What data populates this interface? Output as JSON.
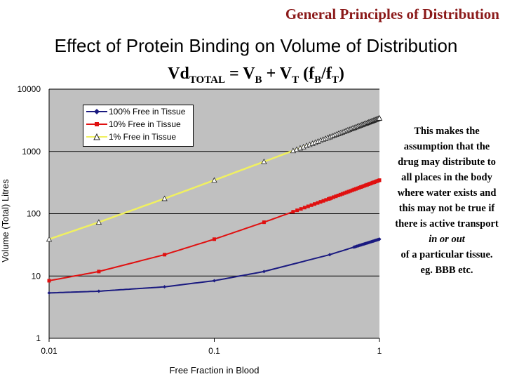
{
  "header": {
    "title": "General Principles of Distribution",
    "subtitle": "Effect of Protein Binding on Volume of Distribution",
    "equation": {
      "lhs": "Vd",
      "lhs_sub": "TOTAL",
      "eq": " = V",
      "b_sub": "B",
      "plus": " + V",
      "t_sub": "T",
      "open": " (f",
      "fb_sub": "B",
      "slash": "/f",
      "ft_sub": "T",
      "close": ")"
    }
  },
  "note": {
    "text_before": "This makes the assumption that the drug may distribute to all places in the body where water exists and this may not be true if there is active transport",
    "emphasis": "in or out",
    "text_after": "of a particular tissue.",
    "example": "eg. BBB etc."
  },
  "chart_data": {
    "type": "line",
    "xlabel": "Free Fraction in Blood",
    "ylabel": "Volume (Total) Litres",
    "x_scale": "log",
    "y_scale": "log",
    "xlim": [
      0.01,
      1
    ],
    "ylim": [
      1,
      10000
    ],
    "x_ticks": [
      "0.01",
      "0.1",
      "1"
    ],
    "y_ticks": [
      "1",
      "10",
      "100",
      "1000",
      "10000"
    ],
    "grid": "horizontal gridlines",
    "plot_background": "#c0c0c0",
    "legend_position": "top-left",
    "series": [
      {
        "name": "100% Free in Tissue",
        "color": "#1a1a80",
        "marker": "diamond",
        "x": [
          0.01,
          0.02,
          0.05,
          0.1,
          0.2,
          0.5,
          1
        ],
        "y": [
          5.35,
          5.7,
          6.7,
          8.4,
          11.8,
          22,
          39
        ]
      },
      {
        "name": "10% Free in Tissue",
        "color": "#e01010",
        "marker": "square",
        "x": [
          0.01,
          0.02,
          0.05,
          0.1,
          0.2,
          0.5,
          1
        ],
        "y": [
          8.4,
          11.8,
          22,
          39,
          73,
          175,
          345
        ]
      },
      {
        "name": "1% Free in Tissue",
        "color": "#f0f060",
        "marker": "triangle",
        "x": [
          0.01,
          0.02,
          0.05,
          0.1,
          0.2,
          0.5,
          1
        ],
        "y": [
          39,
          73,
          175,
          345,
          685,
          1710,
          3425
        ]
      }
    ]
  }
}
